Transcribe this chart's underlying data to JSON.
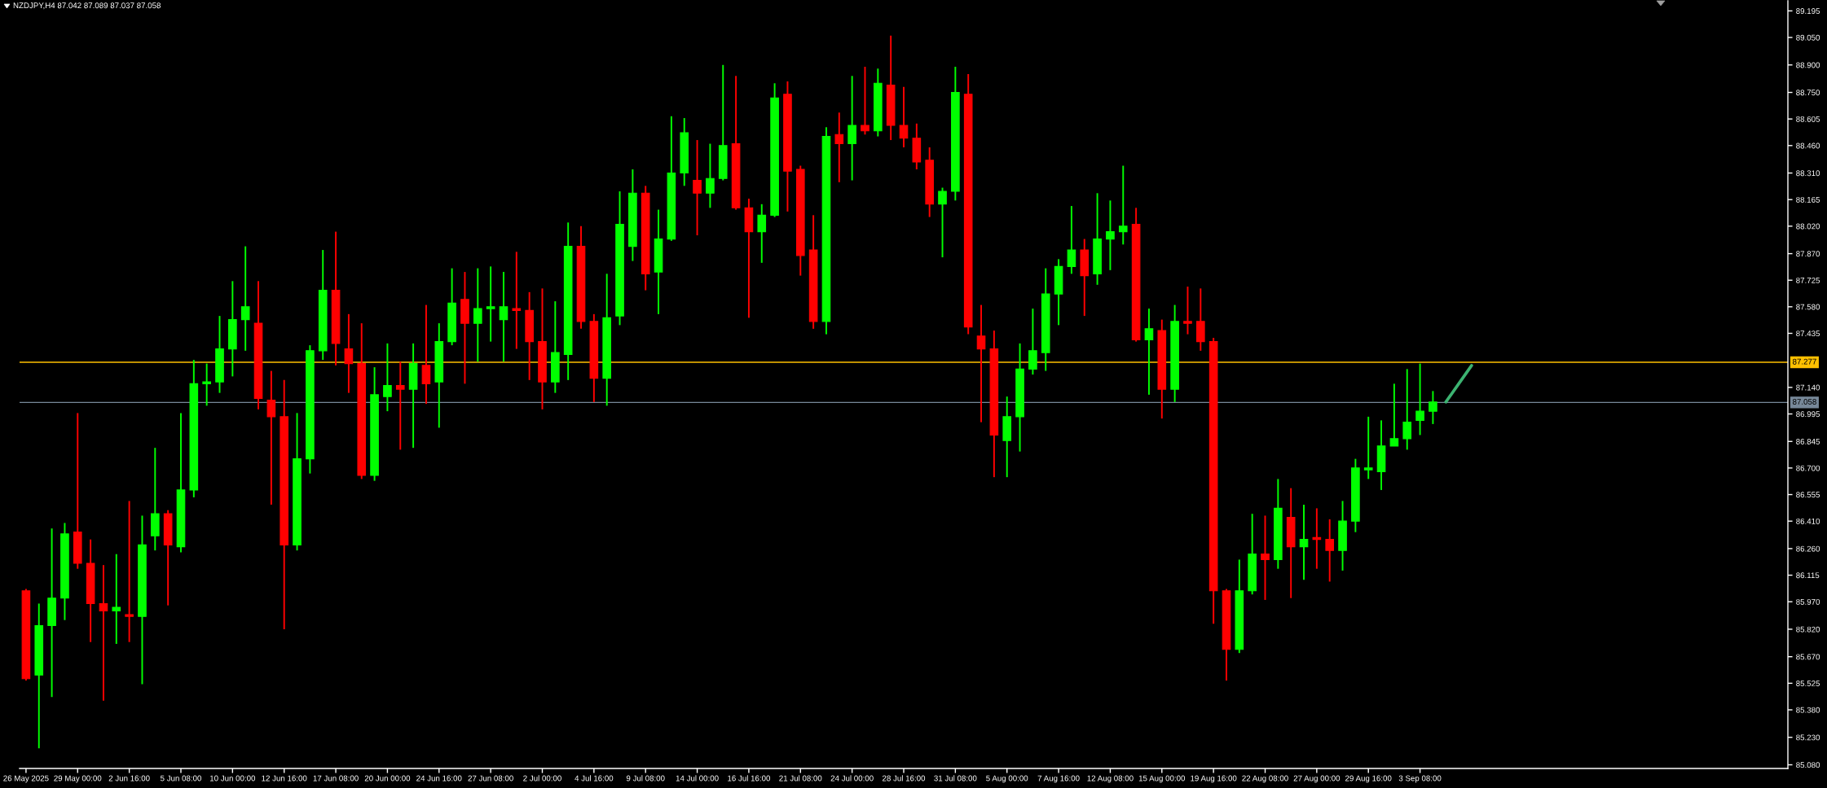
{
  "chart_data": {
    "type": "candlestick",
    "title": "NZDJPY,H4 87.042 87.089 87.037 87.058",
    "categories": [
      "26 May 2025",
      null,
      null,
      null,
      "29 May 00:00",
      null,
      null,
      null,
      "2 Jun 16:00",
      null,
      null,
      null,
      "5 Jun 08:00",
      null,
      null,
      null,
      "10 Jun 00:00",
      null,
      null,
      null,
      "12 Jun 16:00",
      null,
      null,
      null,
      "17 Jun 08:00",
      null,
      null,
      null,
      "20 Jun 00:00",
      null,
      null,
      null,
      "24 Jun 16:00",
      null,
      null,
      null,
      "27 Jun 08:00",
      null,
      null,
      null,
      "2 Jul 00:00",
      null,
      null,
      null,
      "4 Jul 16:00",
      null,
      null,
      null,
      "9 Jul 08:00",
      null,
      null,
      null,
      "14 Jul 00:00",
      null,
      null,
      null,
      "16 Jul 16:00",
      null,
      null,
      null,
      "21 Jul 08:00",
      null,
      null,
      null,
      "24 Jul 00:00",
      null,
      null,
      null,
      "28 Jul 16:00",
      null,
      null,
      null,
      "31 Jul 08:00",
      null,
      null,
      null,
      "5 Aug 00:00",
      null,
      null,
      null,
      "7 Aug 16:00",
      null,
      null,
      null,
      "12 Aug 08:00",
      null,
      null,
      null,
      "15 Aug 00:00",
      null,
      null,
      null,
      "19 Aug 16:00",
      null,
      null,
      null,
      "22 Aug 08:00",
      null,
      null,
      null,
      "27 Aug 00:00",
      null,
      null,
      null,
      "29 Aug 16:00",
      null,
      null,
      null,
      "3 Sep 08:00",
      null,
      null,
      null,
      null,
      null,
      null,
      null,
      null,
      null,
      null,
      null,
      null,
      null,
      null,
      null,
      null,
      null,
      null,
      null,
      null,
      null,
      null,
      null,
      null,
      null,
      null,
      null,
      null
    ],
    "ohlc": [
      [
        86.03,
        86.04,
        85.54,
        85.55
      ],
      [
        85.57,
        85.96,
        85.17,
        85.84
      ],
      [
        85.84,
        86.37,
        85.45,
        85.99
      ],
      [
        85.99,
        86.4,
        85.87,
        86.34
      ],
      [
        86.35,
        87.0,
        86.15,
        86.18
      ],
      [
        86.18,
        86.31,
        85.75,
        85.96
      ],
      [
        85.96,
        86.17,
        85.43,
        85.92
      ],
      [
        85.92,
        86.23,
        85.74,
        85.94
      ],
      [
        85.9,
        86.52,
        85.75,
        85.89
      ],
      [
        85.89,
        86.44,
        85.52,
        86.28
      ],
      [
        86.33,
        86.81,
        86.25,
        86.45
      ],
      [
        86.45,
        86.47,
        85.95,
        86.28
      ],
      [
        86.27,
        87.0,
        86.24,
        86.58
      ],
      [
        86.58,
        87.29,
        86.54,
        87.16
      ],
      [
        87.16,
        87.27,
        87.04,
        87.17
      ],
      [
        87.17,
        87.53,
        87.11,
        87.35
      ],
      [
        87.35,
        87.72,
        87.2,
        87.51
      ],
      [
        87.51,
        87.91,
        87.34,
        87.58
      ],
      [
        87.49,
        87.72,
        87.02,
        87.08
      ],
      [
        87.07,
        87.23,
        86.5,
        86.98
      ],
      [
        86.98,
        87.18,
        85.82,
        86.28
      ],
      [
        86.28,
        87.0,
        86.25,
        86.75
      ],
      [
        86.75,
        87.37,
        86.67,
        87.34
      ],
      [
        87.34,
        87.89,
        87.29,
        87.67
      ],
      [
        87.67,
        87.99,
        87.26,
        87.38
      ],
      [
        87.35,
        87.54,
        87.11,
        87.27
      ],
      [
        87.27,
        87.49,
        86.64,
        86.66
      ],
      [
        86.66,
        87.25,
        86.63,
        87.1
      ],
      [
        87.09,
        87.38,
        87.01,
        87.15
      ],
      [
        87.15,
        87.28,
        86.8,
        87.13
      ],
      [
        87.13,
        87.38,
        86.81,
        87.27
      ],
      [
        87.26,
        87.59,
        87.05,
        87.16
      ],
      [
        87.17,
        87.49,
        86.92,
        87.39
      ],
      [
        87.39,
        87.79,
        87.37,
        87.6
      ],
      [
        87.62,
        87.77,
        87.16,
        87.49
      ],
      [
        87.49,
        87.79,
        87.28,
        87.57
      ],
      [
        87.57,
        87.8,
        87.39,
        87.58
      ],
      [
        87.51,
        87.77,
        87.28,
        87.58
      ],
      [
        87.57,
        87.88,
        87.35,
        87.56
      ],
      [
        87.56,
        87.66,
        87.18,
        87.39
      ],
      [
        87.39,
        87.68,
        87.02,
        87.17
      ],
      [
        87.17,
        87.61,
        87.11,
        87.33
      ],
      [
        87.32,
        88.04,
        87.18,
        87.91
      ],
      [
        87.91,
        88.02,
        87.46,
        87.5
      ],
      [
        87.5,
        87.54,
        87.06,
        87.19
      ],
      [
        87.19,
        87.76,
        87.04,
        87.52
      ],
      [
        87.53,
        88.21,
        87.48,
        88.03
      ],
      [
        87.91,
        88.33,
        87.83,
        88.2
      ],
      [
        88.2,
        88.24,
        87.67,
        87.76
      ],
      [
        87.77,
        88.11,
        87.54,
        87.95
      ],
      [
        87.95,
        88.62,
        87.94,
        88.31
      ],
      [
        88.31,
        88.61,
        88.24,
        88.53
      ],
      [
        88.27,
        88.49,
        87.97,
        88.2
      ],
      [
        88.2,
        88.47,
        88.12,
        88.28
      ],
      [
        88.28,
        88.9,
        88.27,
        88.46
      ],
      [
        88.47,
        88.84,
        88.11,
        88.12
      ],
      [
        88.12,
        88.17,
        87.52,
        87.99
      ],
      [
        87.99,
        88.14,
        87.82,
        88.08
      ],
      [
        88.08,
        88.8,
        88.07,
        88.72
      ],
      [
        88.74,
        88.81,
        88.1,
        88.32
      ],
      [
        88.33,
        88.35,
        87.75,
        87.86
      ],
      [
        87.89,
        88.08,
        87.46,
        87.5
      ],
      [
        87.5,
        88.56,
        87.43,
        88.51
      ],
      [
        88.52,
        88.64,
        88.26,
        88.47
      ],
      [
        88.47,
        88.84,
        88.27,
        88.57
      ],
      [
        88.57,
        88.89,
        88.52,
        88.54
      ],
      [
        88.54,
        88.88,
        88.51,
        88.8
      ],
      [
        88.79,
        89.06,
        88.49,
        88.57
      ],
      [
        88.57,
        88.78,
        88.45,
        88.5
      ],
      [
        88.5,
        88.58,
        88.33,
        88.37
      ],
      [
        88.38,
        88.45,
        88.07,
        88.14
      ],
      [
        88.14,
        88.23,
        87.85,
        88.21
      ],
      [
        88.21,
        88.89,
        88.16,
        88.75
      ],
      [
        88.74,
        88.85,
        87.43,
        87.47
      ],
      [
        87.42,
        87.59,
        86.95,
        87.35
      ],
      [
        87.35,
        87.45,
        86.65,
        86.88
      ],
      [
        86.85,
        87.09,
        86.65,
        86.98
      ],
      [
        86.98,
        87.38,
        86.79,
        87.24
      ],
      [
        87.24,
        87.57,
        87.21,
        87.34
      ],
      [
        87.33,
        87.79,
        87.23,
        87.65
      ],
      [
        87.65,
        87.84,
        87.48,
        87.8
      ],
      [
        87.8,
        88.13,
        87.76,
        87.89
      ],
      [
        87.89,
        87.95,
        87.53,
        87.75
      ],
      [
        87.76,
        88.2,
        87.7,
        87.95
      ],
      [
        87.95,
        88.16,
        87.78,
        87.99
      ],
      [
        87.99,
        88.35,
        87.92,
        88.02
      ],
      [
        88.03,
        88.12,
        87.39,
        87.4
      ],
      [
        87.4,
        87.57,
        87.1,
        87.46
      ],
      [
        87.45,
        87.51,
        86.97,
        87.13
      ],
      [
        87.13,
        87.59,
        87.06,
        87.5
      ],
      [
        87.5,
        87.69,
        87.43,
        87.49
      ],
      [
        87.5,
        87.68,
        87.34,
        87.39
      ],
      [
        87.39,
        87.41,
        85.85,
        86.03
      ],
      [
        86.03,
        86.04,
        85.54,
        85.71
      ],
      [
        85.71,
        86.2,
        85.69,
        86.03
      ],
      [
        86.03,
        86.45,
        86.01,
        86.23
      ],
      [
        86.23,
        86.44,
        85.98,
        86.2
      ],
      [
        86.2,
        86.64,
        86.15,
        86.48
      ],
      [
        86.43,
        86.59,
        85.99,
        86.27
      ],
      [
        86.27,
        86.5,
        86.09,
        86.31
      ],
      [
        86.32,
        86.48,
        86.15,
        86.31
      ],
      [
        86.31,
        86.42,
        86.08,
        86.25
      ],
      [
        86.25,
        86.52,
        86.14,
        86.41
      ],
      [
        86.41,
        86.75,
        86.35,
        86.7
      ],
      [
        86.69,
        86.98,
        86.64,
        86.7
      ],
      [
        86.68,
        86.96,
        86.58,
        86.82
      ],
      [
        86.82,
        87.16,
        86.82,
        86.86
      ],
      [
        86.86,
        87.24,
        86.8,
        86.95
      ],
      [
        86.96,
        87.27,
        86.88,
        87.01
      ],
      [
        87.01,
        87.12,
        86.94,
        87.06
      ],
      null,
      null,
      null,
      null,
      null,
      null,
      null,
      null,
      null,
      null,
      null,
      null,
      null,
      null,
      null,
      null,
      null,
      null,
      null,
      null,
      null,
      null,
      null,
      null,
      null,
      null,
      null
    ],
    "colors": [
      "#ff0000",
      "#00ff00",
      "#00ff00",
      "#00ff00",
      "#ff0000",
      "#ff0000",
      "#ff0000",
      "#00ff00",
      "#ff0000",
      "#00ff00",
      "#00ff00",
      "#ff0000",
      "#00ff00",
      "#00ff00",
      "#00ff00",
      "#00ff00",
      "#00ff00",
      "#00ff00",
      "#ff0000",
      "#ff0000",
      "#ff0000",
      "#00ff00",
      "#00ff00",
      "#00ff00",
      "#ff0000",
      "#ff0000",
      "#ff0000",
      "#00ff00",
      "#00ff00",
      "#ff0000",
      "#00ff00",
      "#ff0000",
      "#00ff00",
      "#00ff00",
      "#ff0000",
      "#00ff00",
      "#00ff00",
      "#00ff00",
      "#ff0000",
      "#ff0000",
      "#ff0000",
      "#00ff00",
      "#00ff00",
      "#ff0000",
      "#ff0000",
      "#00ff00",
      "#00ff00",
      "#00ff00",
      "#ff0000",
      "#00ff00",
      "#00ff00",
      "#00ff00",
      "#ff0000",
      "#00ff00",
      "#00ff00",
      "#ff0000",
      "#ff0000",
      "#00ff00",
      "#00ff00",
      "#ff0000",
      "#ff0000",
      "#ff0000",
      "#00ff00",
      "#ff0000",
      "#00ff00",
      "#ff0000",
      "#00ff00",
      "#ff0000",
      "#ff0000",
      "#ff0000",
      "#ff0000",
      "#00ff00",
      "#00ff00",
      "#ff0000",
      "#ff0000",
      "#ff0000",
      "#00ff00",
      "#00ff00",
      "#00ff00",
      "#00ff00",
      "#00ff00",
      "#00ff00",
      "#ff0000",
      "#00ff00",
      "#00ff00",
      "#00ff00",
      "#ff0000",
      "#00ff00",
      "#ff0000",
      "#00ff00",
      "#ff0000",
      "#ff0000",
      "#ff0000",
      "#ff0000",
      "#00ff00",
      "#00ff00",
      "#ff0000",
      "#00ff00",
      "#ff0000",
      "#00ff00",
      "#ff0000",
      "#ff0000",
      "#00ff00",
      "#00ff00",
      "#00ff00",
      "#00ff00",
      "#00ff00",
      "#00ff00",
      "#00ff00",
      "#00ff00",
      null,
      null,
      null,
      null,
      null,
      null,
      null,
      null,
      null,
      null,
      null,
      null,
      null,
      null,
      null,
      null,
      null,
      null,
      null,
      null,
      null,
      null,
      null,
      null,
      null,
      null,
      null
    ],
    "series": [
      {
        "type": "line",
        "color": "#3cb371",
        "values": [
          null,
          null,
          null,
          null,
          null,
          null,
          null,
          null,
          null,
          null,
          null,
          null,
          null,
          null,
          null,
          null,
          null,
          null,
          null,
          null,
          null,
          null,
          null,
          null,
          null,
          null,
          null,
          null,
          null,
          null,
          null,
          null,
          null,
          null,
          null,
          null,
          null,
          null,
          null,
          null,
          null,
          null,
          null,
          null,
          null,
          null,
          null,
          null,
          null,
          null,
          null,
          null,
          null,
          null,
          null,
          null,
          null,
          null,
          null,
          null,
          null,
          null,
          null,
          null,
          null,
          null,
          null,
          null,
          null,
          null,
          null,
          null,
          null,
          null,
          null,
          null,
          null,
          null,
          null,
          null,
          null,
          null,
          null,
          null,
          null,
          null,
          null,
          null,
          null,
          null,
          null,
          null,
          null,
          null,
          null,
          null,
          null,
          null,
          null,
          null,
          null,
          null,
          null,
          null,
          null,
          null,
          null,
          null,
          null,
          null,
          87.06,
          87.16,
          87.26,
          null,
          null,
          null,
          null,
          null,
          null,
          null,
          null,
          null,
          null,
          null,
          null,
          null,
          null,
          null,
          null,
          null,
          null,
          null,
          null,
          null,
          null,
          null,
          null
        ]
      }
    ],
    "ylim": [
      85.06,
      89.25
    ],
    "yticks": [
      89.195,
      {
        "value": 89.05,
        "label": "89.050"
      },
      {
        "value": 88.9,
        "label": "88.900"
      },
      {
        "value": 88.75,
        "label": "88.750"
      },
      88.605,
      {
        "value": 88.46,
        "label": "88.460"
      },
      {
        "value": 88.31,
        "label": "88.310"
      },
      88.165,
      {
        "value": 88.02,
        "label": "88.020"
      },
      {
        "value": 87.87,
        "label": "87.870"
      },
      87.725,
      {
        "value": 87.58,
        "label": "87.580"
      },
      87.435,
      {
        "value": 87.14,
        "label": "87.140"
      },
      86.995,
      86.845,
      {
        "value": 86.7,
        "label": "86.700"
      },
      86.555,
      {
        "value": 86.41,
        "label": "86.410"
      },
      {
        "value": 86.26,
        "label": "86.260"
      },
      86.115,
      {
        "value": 85.97,
        "label": "85.970"
      },
      {
        "value": 85.82,
        "label": "85.820"
      },
      {
        "value": 85.67,
        "label": "85.670"
      },
      85.525,
      {
        "value": 85.38,
        "label": "85.380"
      },
      {
        "value": 85.23,
        "label": "85.230"
      },
      {
        "value": 85.08,
        "label": "85.080"
      }
    ],
    "ref_lines": [
      {
        "axis": "y",
        "value": 87.277,
        "label": "87.277",
        "color": "#ffc000"
      },
      {
        "axis": "y",
        "value": 87.058,
        "label": "87.058",
        "color": "#778899"
      }
    ]
  }
}
